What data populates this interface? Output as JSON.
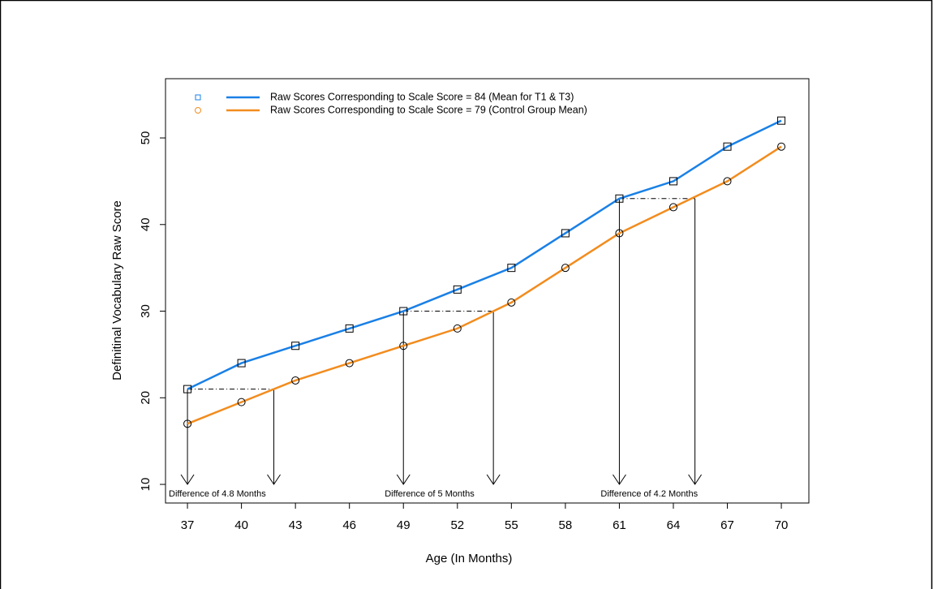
{
  "chart_data": {
    "type": "line",
    "xlabel": "Age (In Months)",
    "ylabel": "Definitinal Vocabulary Raw Score",
    "x": [
      37,
      40,
      43,
      46,
      49,
      52,
      55,
      58,
      61,
      64,
      67,
      70
    ],
    "series": [
      {
        "name": "Raw Scores Corresponding to Scale Score = 84 (Mean for T1 & T3)",
        "color": "#1a80e6",
        "marker": "square",
        "values": [
          21,
          24,
          26,
          28,
          30,
          32.5,
          35,
          39,
          43,
          45,
          49,
          52
        ]
      },
      {
        "name": "Raw Scores Corresponding to Scale Score = 79 (Control Group Mean)",
        "color": "#f28c1e",
        "marker": "circle",
        "values": [
          17,
          19.5,
          22,
          24,
          26,
          28,
          31,
          35,
          39,
          42,
          45,
          49
        ]
      }
    ],
    "xlim": [
      35.78,
      71.53
    ],
    "ylim": [
      7.85,
      56.84
    ],
    "xticks": [
      37,
      40,
      43,
      46,
      49,
      52,
      55,
      58,
      61,
      64,
      67,
      70
    ],
    "yticks": [
      10,
      20,
      30,
      40,
      50
    ],
    "legend": "top-left",
    "annotations": [
      {
        "text": "Difference of  4.8  Months",
        "x1": 37,
        "x2": 41.8,
        "y": 21
      },
      {
        "text": "Difference of  5  Months",
        "x1": 49,
        "x2": 54,
        "y": 30
      },
      {
        "text": "Difference of  4.2  Months",
        "x1": 61,
        "x2": 65.2,
        "y": 43
      }
    ]
  }
}
